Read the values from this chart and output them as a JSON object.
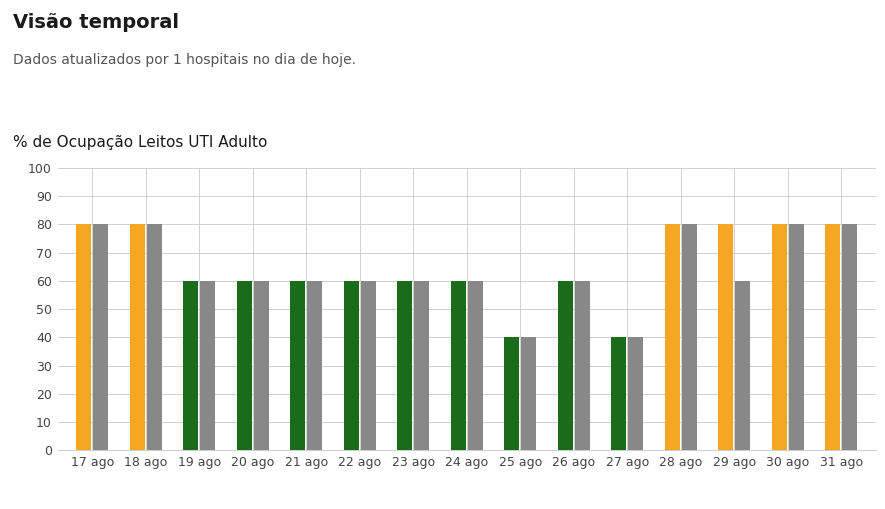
{
  "title": "Visão temporal",
  "subtitle": "Dados atualizados por 1 hospitais no dia de hoje.",
  "ylabel": "% de Ocupação Leitos UTI Adulto",
  "categories": [
    "17 ago",
    "18 ago",
    "19 ago",
    "20 ago",
    "21 ago",
    "22 ago",
    "23 ago",
    "24 ago",
    "25 ago",
    "26 ago",
    "27 ago",
    "28 ago",
    "29 ago",
    "30 ago",
    "31 ago"
  ],
  "left_values": [
    80,
    80,
    60,
    60,
    60,
    60,
    60,
    60,
    40,
    60,
    40,
    80,
    80,
    80,
    80
  ],
  "right_values": [
    80,
    80,
    60,
    60,
    60,
    60,
    60,
    60,
    40,
    60,
    40,
    80,
    60,
    80,
    80
  ],
  "left_colors": [
    "#f5a623",
    "#f5a623",
    "#1a6b1a",
    "#1a6b1a",
    "#1a6b1a",
    "#1a6b1a",
    "#1a6b1a",
    "#1a6b1a",
    "#1a6b1a",
    "#1a6b1a",
    "#1a6b1a",
    "#f5a623",
    "#f5a623",
    "#f5a623",
    "#f5a623"
  ],
  "right_color": "#888888",
  "bar_width": 0.28,
  "bar_gap": 0.04,
  "orange_color": "#f5a623",
  "gray_color": "#888888",
  "green_color": "#1a6b1a",
  "background_color": "#ffffff",
  "grid_color": "#d0d0d0",
  "ylim": [
    0,
    100
  ],
  "yticks": [
    0,
    10,
    20,
    30,
    40,
    50,
    60,
    70,
    80,
    90,
    100
  ],
  "title_fontsize": 14,
  "subtitle_fontsize": 10,
  "ylabel_fontsize": 11,
  "tick_fontsize": 9
}
